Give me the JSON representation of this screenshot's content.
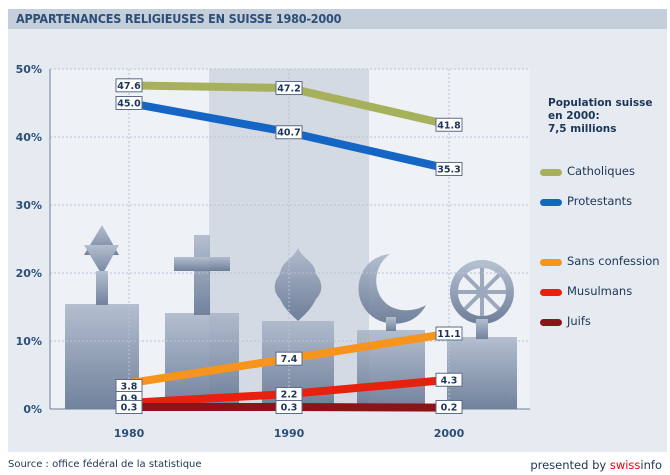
{
  "chart_data": {
    "type": "line",
    "title": "APPARTENANCES RELIGIEUSES EN SUISSE 1980-2000",
    "x": [
      "1980",
      "1990",
      "2000"
    ],
    "ylim": [
      0,
      50
    ],
    "yticks": [
      "0%",
      "10%",
      "20%",
      "30%",
      "40%",
      "50%"
    ],
    "grid": true,
    "legend_placement": "right",
    "series": [
      {
        "name": "Catholiques",
        "values": [
          47.6,
          47.2,
          41.8
        ],
        "labels": [
          "47.6",
          "47.2",
          "41.8"
        ],
        "color": "#a7b05b"
      },
      {
        "name": "Protestants",
        "values": [
          45.0,
          40.7,
          35.3
        ],
        "labels": [
          "45.0",
          "40.7",
          "35.3"
        ],
        "color": "#1565c5"
      },
      {
        "name": "Sans confession",
        "values": [
          3.8,
          7.4,
          11.1
        ],
        "labels": [
          "3.8",
          "7.4",
          "11.1"
        ],
        "color": "#f7941d"
      },
      {
        "name": "Musulmans",
        "values": [
          0.9,
          2.2,
          4.3
        ],
        "labels": [
          "0.9",
          "2.2",
          "4.3"
        ],
        "color": "#e8210f"
      },
      {
        "name": "Juifs",
        "values": [
          0.3,
          0.3,
          0.2
        ],
        "labels": [
          "0.3",
          "0.3",
          "0.2"
        ],
        "color": "#8c1418"
      }
    ],
    "population_note": "Population suisse en 2000: 7,5 millions"
  },
  "population_note_lines": [
    "Population suisse",
    "en 2000:",
    "7,5 millions"
  ],
  "footer": {
    "source": "Source : office fédéral de la statistique",
    "presented_prefix": "presented by ",
    "brand_swiss": "swiss",
    "brand_info": "info"
  },
  "colors": {
    "panel": "#e6ebf2",
    "title_bar": "#c5cfdc",
    "title_text": "#2c4f78",
    "shaded_band": "#d3dae3",
    "silhouette": "#8e9cb4"
  },
  "icons": [
    "star-of-david-icon",
    "cross-icon",
    "flame-icon",
    "crescent-icon",
    "dharma-wheel-icon"
  ]
}
